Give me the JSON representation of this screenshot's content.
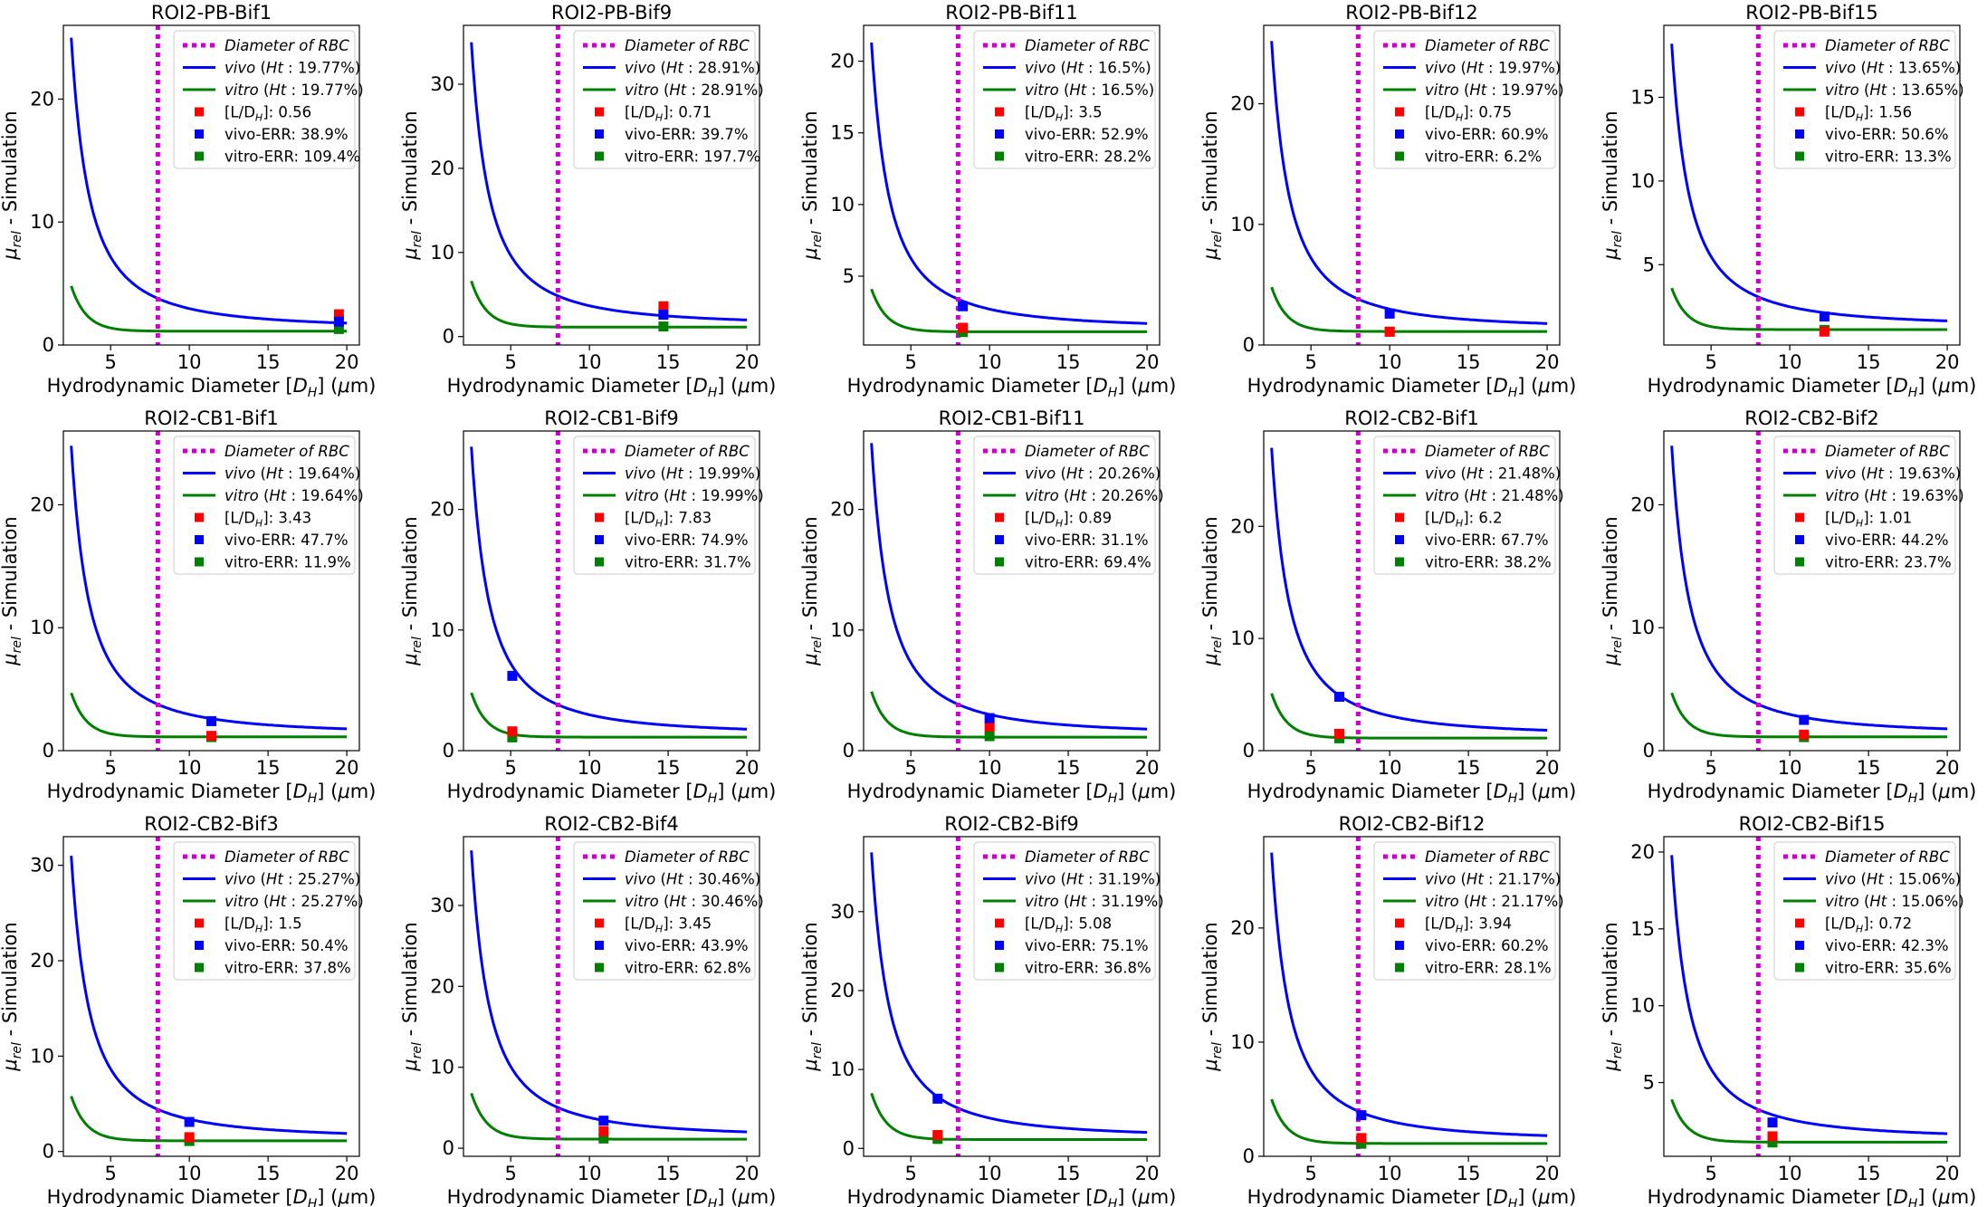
{
  "figure": {
    "xlabel": "Hydrodynamic Diameter [D_H] (μm)",
    "ylabel": "μ_rel - Simulation",
    "legend_labels": {
      "rbc": "Diameter of RBC",
      "vivo": "vivo",
      "vitro": "vitro",
      "ld_prefix": "[L/D",
      "vivo_err": "vivo-ERR",
      "vitro_err": "vitro-ERR"
    },
    "colors": {
      "rbc": "#cc00cc",
      "vivo": "#0000ff",
      "vitro": "#008000",
      "ld": "#ff0000"
    }
  },
  "chart_data": [
    {
      "type": "line",
      "title": "ROI2-PB-Bif1",
      "ht": "19.77%",
      "ld": "0.56",
      "vivo_err": "38.9%",
      "vitro_err": "109.4%",
      "ylim": [
        0,
        26
      ],
      "yticks": [
        0,
        10,
        20
      ],
      "rbc_x": 8,
      "point": {
        "x": 19.5,
        "ld_y": 2.5,
        "vivo_y": 1.9,
        "vitro_y": 1.3
      },
      "vivo_peak": 25,
      "vitro_peak": 4.8,
      "xlim": [
        2,
        20.8
      ],
      "xticks": [
        5,
        10,
        15,
        20
      ],
      "legend_position": "top-right"
    },
    {
      "type": "line",
      "title": "ROI2-PB-Bif9",
      "ht": "28.91%",
      "ld": "0.71",
      "vivo_err": "39.7%",
      "vitro_err": "197.7%",
      "ylim": [
        -1,
        37
      ],
      "yticks": [
        0,
        10,
        20,
        30
      ],
      "rbc_x": 8,
      "point": {
        "x": 14.7,
        "ld_y": 3.6,
        "vivo_y": 2.6,
        "vitro_y": 1.2
      },
      "vivo_peak": 35,
      "vitro_peak": 6.6,
      "xlim": [
        2,
        20.8
      ],
      "xticks": [
        5,
        10,
        15,
        20
      ],
      "legend_position": "top-right"
    },
    {
      "type": "line",
      "title": "ROI2-PB-Bif11",
      "ht": "16.5%",
      "ld": "3.5",
      "vivo_err": "52.9%",
      "vitro_err": "28.2%",
      "ylim": [
        0.2,
        22.5
      ],
      "yticks": [
        5,
        10,
        15,
        20
      ],
      "rbc_x": 8,
      "point": {
        "x": 8.3,
        "ld_y": 1.4,
        "vivo_y": 2.9,
        "vitro_y": 1.1
      },
      "vivo_peak": 21.3,
      "vitro_peak": 4.1,
      "xlim": [
        2,
        20.8
      ],
      "xticks": [
        5,
        10,
        15,
        20
      ],
      "legend_position": "top-right"
    },
    {
      "type": "line",
      "title": "ROI2-PB-Bif12",
      "ht": "19.97%",
      "ld": "0.75",
      "vivo_err": "60.9%",
      "vitro_err": "6.2%",
      "ylim": [
        0,
        26.5
      ],
      "yticks": [
        0,
        10,
        20
      ],
      "rbc_x": 8,
      "point": {
        "x": 10,
        "ld_y": 1.1,
        "vivo_y": 2.6,
        "vitro_y": 1.1
      },
      "vivo_peak": 25.2,
      "vitro_peak": 4.8,
      "xlim": [
        2,
        20.8
      ],
      "xticks": [
        5,
        10,
        15,
        20
      ],
      "legend_position": "top-right"
    },
    {
      "type": "line",
      "title": "ROI2-PB-Bif15",
      "ht": "13.65%",
      "ld": "1.56",
      "vivo_err": "50.6%",
      "vitro_err": "13.3%",
      "ylim": [
        0.2,
        19.3
      ],
      "yticks": [
        5,
        10,
        15
      ],
      "rbc_x": 8,
      "point": {
        "x": 12.2,
        "ld_y": 1.0,
        "vivo_y": 1.9,
        "vitro_y": 1.1
      },
      "vivo_peak": 18.2,
      "vitro_peak": 3.6,
      "xlim": [
        2,
        20.8
      ],
      "xticks": [
        5,
        10,
        15,
        20
      ],
      "legend_position": "top-right"
    },
    {
      "type": "line",
      "title": "ROI2-CB1-Bif1",
      "ht": "19.64%",
      "ld": "3.43",
      "vivo_err": "47.7%",
      "vitro_err": "11.9%",
      "ylim": [
        0,
        26
      ],
      "yticks": [
        0,
        10,
        20
      ],
      "rbc_x": 8,
      "point": {
        "x": 11.4,
        "ld_y": 1.2,
        "vivo_y": 2.4,
        "vitro_y": 1.1
      },
      "vivo_peak": 24.8,
      "vitro_peak": 4.7,
      "xlim": [
        2,
        20.8
      ],
      "xticks": [
        5,
        10,
        15,
        20
      ],
      "legend_position": "top-right"
    },
    {
      "type": "line",
      "title": "ROI2-CB1-Bif9",
      "ht": "19.99%",
      "ld": "7.83",
      "vivo_err": "74.9%",
      "vitro_err": "31.7%",
      "ylim": [
        0,
        26.5
      ],
      "yticks": [
        0,
        10,
        20
      ],
      "rbc_x": 8,
      "point": {
        "x": 5.1,
        "ld_y": 1.6,
        "vivo_y": 6.2,
        "vitro_y": 1.1
      },
      "vivo_peak": 25.2,
      "vitro_peak": 4.8,
      "xlim": [
        2,
        20.8
      ],
      "xticks": [
        5,
        10,
        15,
        20
      ],
      "legend_position": "top-right"
    },
    {
      "type": "line",
      "title": "ROI2-CB1-Bif11",
      "ht": "20.26%",
      "ld": "0.89",
      "vivo_err": "31.1%",
      "vitro_err": "69.4%",
      "ylim": [
        0,
        26.5
      ],
      "yticks": [
        0,
        10,
        20
      ],
      "rbc_x": 8,
      "point": {
        "x": 10,
        "ld_y": 2.0,
        "vivo_y": 2.7,
        "vitro_y": 1.2
      },
      "vivo_peak": 25.5,
      "vitro_peak": 4.9,
      "xlim": [
        2,
        20.8
      ],
      "xticks": [
        5,
        10,
        15,
        20
      ],
      "legend_position": "top-right"
    },
    {
      "type": "line",
      "title": "ROI2-CB2-Bif1",
      "ht": "21.48%",
      "ld": "6.2",
      "vivo_err": "67.7%",
      "vitro_err": "38.2%",
      "ylim": [
        0,
        28.5
      ],
      "yticks": [
        0,
        10,
        20
      ],
      "rbc_x": 8,
      "point": {
        "x": 6.8,
        "ld_y": 1.5,
        "vivo_y": 4.8,
        "vitro_y": 1.1
      },
      "vivo_peak": 27,
      "vitro_peak": 5.1,
      "xlim": [
        2,
        20.8
      ],
      "xticks": [
        5,
        10,
        15,
        20
      ],
      "legend_position": "top-right"
    },
    {
      "type": "line",
      "title": "ROI2-CB2-Bif2",
      "ht": "19.63%",
      "ld": "1.01",
      "vivo_err": "44.2%",
      "vitro_err": "23.7%",
      "ylim": [
        0,
        26
      ],
      "yticks": [
        0,
        10,
        20
      ],
      "rbc_x": 8,
      "point": {
        "x": 10.9,
        "ld_y": 1.3,
        "vivo_y": 2.5,
        "vitro_y": 1.1
      },
      "vivo_peak": 24.8,
      "vitro_peak": 4.7,
      "xlim": [
        2,
        20.8
      ],
      "xticks": [
        5,
        10,
        15,
        20
      ],
      "legend_position": "top-right"
    },
    {
      "type": "line",
      "title": "ROI2-CB2-Bif3",
      "ht": "25.27%",
      "ld": "1.5",
      "vivo_err": "50.4%",
      "vitro_err": "37.8%",
      "ylim": [
        -0.5,
        33
      ],
      "yticks": [
        0,
        10,
        20,
        30
      ],
      "rbc_x": 8,
      "point": {
        "x": 10,
        "ld_y": 1.5,
        "vivo_y": 3.1,
        "vitro_y": 1.1
      },
      "vivo_peak": 31,
      "vitro_peak": 5.8,
      "xlim": [
        2,
        20.8
      ],
      "xticks": [
        5,
        10,
        15,
        20
      ],
      "legend_position": "top-right"
    },
    {
      "type": "line",
      "title": "ROI2-CB2-Bif4",
      "ht": "30.46%",
      "ld": "3.45",
      "vivo_err": "43.9%",
      "vitro_err": "62.8%",
      "ylim": [
        -1,
        38.5
      ],
      "yticks": [
        0,
        10,
        20,
        30
      ],
      "rbc_x": 8,
      "point": {
        "x": 10.9,
        "ld_y": 2.1,
        "vivo_y": 3.4,
        "vitro_y": 1.2
      },
      "vivo_peak": 36.8,
      "vitro_peak": 6.8,
      "xlim": [
        2,
        20.8
      ],
      "xticks": [
        5,
        10,
        15,
        20
      ],
      "legend_position": "top-right"
    },
    {
      "type": "line",
      "title": "ROI2-CB2-Bif9",
      "ht": "31.19%",
      "ld": "5.08",
      "vivo_err": "75.1%",
      "vitro_err": "36.8%",
      "ylim": [
        -1,
        39.5
      ],
      "yticks": [
        0,
        10,
        20,
        30
      ],
      "rbc_x": 8,
      "point": {
        "x": 6.7,
        "ld_y": 1.7,
        "vivo_y": 6.3,
        "vitro_y": 1.2
      },
      "vivo_peak": 37.5,
      "vitro_peak": 7,
      "xlim": [
        2,
        20.8
      ],
      "xticks": [
        5,
        10,
        15,
        20
      ],
      "legend_position": "top-right"
    },
    {
      "type": "line",
      "title": "ROI2-CB2-Bif12",
      "ht": "21.17%",
      "ld": "3.94",
      "vivo_err": "60.2%",
      "vitro_err": "28.1%",
      "ylim": [
        0,
        28
      ],
      "yticks": [
        0,
        10,
        20
      ],
      "rbc_x": 8,
      "point": {
        "x": 8.2,
        "ld_y": 1.6,
        "vivo_y": 3.6,
        "vitro_y": 1.1
      },
      "vivo_peak": 26.6,
      "vitro_peak": 5,
      "xlim": [
        2,
        20.8
      ],
      "xticks": [
        5,
        10,
        15,
        20
      ],
      "legend_position": "top-right"
    },
    {
      "type": "line",
      "title": "ROI2-CB2-Bif15",
      "ht": "15.06%",
      "ld": "0.72",
      "vivo_err": "42.3%",
      "vitro_err": "35.6%",
      "ylim": [
        0.2,
        21
      ],
      "yticks": [
        5,
        10,
        15,
        20
      ],
      "rbc_x": 8,
      "point": {
        "x": 8.9,
        "ld_y": 1.5,
        "vivo_y": 2.4,
        "vitro_y": 1.1
      },
      "vivo_peak": 19.8,
      "vitro_peak": 3.9,
      "xlim": [
        2,
        20.8
      ],
      "xticks": [
        5,
        10,
        15,
        20
      ],
      "legend_position": "top-right"
    }
  ]
}
